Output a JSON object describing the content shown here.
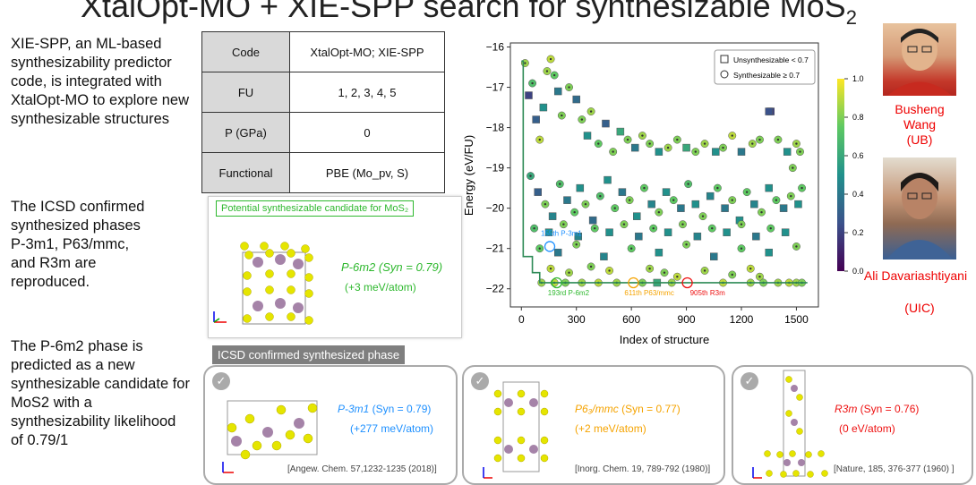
{
  "title": {
    "prefix": "XtalOpt-MO + XIE-SPP search for synthesizable MoS",
    "sub": "2"
  },
  "left": {
    "p1": "XIE-SPP, an ML-based synthesizability predictor code, is integrated with XtalOpt-MO to explore new synthesizable structures",
    "p2a": "The ICSD confirmed synthesized phases",
    "p2phases": "P-3m1, P63/mmc, and R3m",
    "p2b": "are reproduced.",
    "p3a": "The P-6m2 phase is predicted as a new synthesizable candidate for MoS2",
    "p3b": "with a synthesizability likelihood of 0.79/1"
  },
  "table": {
    "rows": [
      {
        "k": "Code",
        "v": "XtalOpt-MO; XIE-SPP"
      },
      {
        "k": "FU",
        "v": "1, 2, 3, 4, 5"
      },
      {
        "k": "P (GPa)",
        "v": "0"
      },
      {
        "k": "Functional",
        "v": "PBE (Mo_pv, S)"
      }
    ]
  },
  "candidate": {
    "label": "Potential synthesizable candidate for MoS₂",
    "name": "P-6m2 (Syn = 0.79)",
    "energy": "(+3 meV/atom)"
  },
  "icsd_tag": "ICSD confirmed synthesized phase",
  "phases": [
    {
      "name": "P-3m1",
      "syn": " (Syn = 0.79)",
      "energy": "(+277 meV/atom)",
      "ref": "[Angew. Chem. 57,1232-1235 (2018)]",
      "color": "#1e90ff"
    },
    {
      "name": "P6₃/mmc",
      "syn": " (Syn = 0.77)",
      "energy": "(+2 meV/atom)",
      "ref": "[Inorg. Chem. 19, 789-792 (1980)]",
      "color": "#f5a300"
    },
    {
      "name": "R3m",
      "syn": " (Syn = 0.76)",
      "energy": "(0 eV/atom)",
      "ref": "[Nature, 185, 376-377 (1960) ]",
      "color": "#ee1111"
    }
  ],
  "people": [
    {
      "name": "Busheng Wang",
      "aff": "(UB)"
    },
    {
      "name": "Ali Davariashtiyani",
      "aff": "(UIC)"
    }
  ],
  "chart_data": {
    "type": "scatter",
    "xlabel": "Index of structure",
    "ylabel": "Energy (eV/FU)",
    "xlim": [
      -60,
      1620
    ],
    "ylim": [
      -22.45,
      -15.9
    ],
    "xticks": [
      0,
      300,
      600,
      900,
      1200,
      1500
    ],
    "yticks": [
      -16,
      -17,
      -18,
      -19,
      -20,
      -21,
      -22
    ],
    "legend": [
      "Unsynthesizable < 0.7",
      "Synthesizable ≥ 0.7"
    ],
    "colorbar": {
      "min": 0.0,
      "max": 1.0,
      "ticks": [
        "1.0",
        "0.8",
        "0.6",
        "0.4",
        "0.2",
        "0.0"
      ]
    },
    "hull_line": [
      [
        0,
        -16.35
      ],
      [
        10,
        -16.35
      ],
      [
        10,
        -21.2
      ],
      [
        60,
        -21.2
      ],
      [
        60,
        -21.6
      ],
      [
        100,
        -21.6
      ],
      [
        100,
        -21.85
      ],
      [
        1560,
        -21.85
      ]
    ],
    "annotations": [
      {
        "text": "155th P-3m1",
        "x": 155,
        "y": -20.95,
        "color": "#1e90ff"
      },
      {
        "text": "193rd P-6m2",
        "x": 193,
        "y": -21.85,
        "color": "#2eb82e"
      },
      {
        "text": "611th P63/mmc",
        "x": 611,
        "y": -21.85,
        "color": "#f5a300"
      },
      {
        "text": "905th R3m",
        "x": 905,
        "y": -21.85,
        "color": "#ee1111"
      }
    ],
    "points": [
      [
        20,
        -16.4,
        0.85,
        1
      ],
      [
        40,
        -17.2,
        0.2,
        0
      ],
      [
        60,
        -16.9,
        0.7,
        1
      ],
      [
        80,
        -17.8,
        0.3,
        0
      ],
      [
        100,
        -18.3,
        0.9,
        1
      ],
      [
        120,
        -17.5,
        0.5,
        0
      ],
      [
        140,
        -16.6,
        0.85,
        1
      ],
      [
        160,
        -16.3,
        0.9,
        1
      ],
      [
        180,
        -16.7,
        0.75,
        1
      ],
      [
        200,
        -17.1,
        0.4,
        0
      ],
      [
        220,
        -17.7,
        0.8,
        1
      ],
      [
        260,
        -17.0,
        0.8,
        1
      ],
      [
        300,
        -17.3,
        0.35,
        0
      ],
      [
        330,
        -17.8,
        0.8,
        1
      ],
      [
        360,
        -18.2,
        0.5,
        0
      ],
      [
        380,
        -17.6,
        0.85,
        1
      ],
      [
        420,
        -18.4,
        0.75,
        1
      ],
      [
        460,
        -17.9,
        0.3,
        0
      ],
      [
        500,
        -18.6,
        0.8,
        1
      ],
      [
        540,
        -18.1,
        0.6,
        0
      ],
      [
        580,
        -18.3,
        0.8,
        1
      ],
      [
        620,
        -18.5,
        0.4,
        0
      ],
      [
        660,
        -18.2,
        0.85,
        1
      ],
      [
        700,
        -18.4,
        0.8,
        1
      ],
      [
        750,
        -18.6,
        0.5,
        0
      ],
      [
        800,
        -18.5,
        0.85,
        1
      ],
      [
        850,
        -18.3,
        0.8,
        1
      ],
      [
        900,
        -18.5,
        0.6,
        0
      ],
      [
        950,
        -18.6,
        0.8,
        1
      ],
      [
        1000,
        -18.4,
        0.85,
        1
      ],
      [
        1060,
        -18.6,
        0.5,
        0
      ],
      [
        1100,
        -18.5,
        0.8,
        1
      ],
      [
        1150,
        -18.2,
        0.9,
        1
      ],
      [
        1200,
        -18.6,
        0.4,
        0
      ],
      [
        1260,
        -18.4,
        0.85,
        1
      ],
      [
        1300,
        -18.3,
        0.8,
        1
      ],
      [
        1360,
        -17.6,
        0.2,
        0
      ],
      [
        1400,
        -18.3,
        0.8,
        1
      ],
      [
        1450,
        -18.6,
        0.5,
        0
      ],
      [
        1500,
        -18.4,
        0.85,
        1
      ],
      [
        1520,
        -18.6,
        0.8,
        1
      ],
      [
        50,
        -19.2,
        0.6,
        1
      ],
      [
        90,
        -19.6,
        0.3,
        0
      ],
      [
        130,
        -19.9,
        0.8,
        1
      ],
      [
        170,
        -20.2,
        0.45,
        0
      ],
      [
        210,
        -19.4,
        0.7,
        1
      ],
      [
        250,
        -19.8,
        0.4,
        0
      ],
      [
        290,
        -20.1,
        0.75,
        1
      ],
      [
        320,
        -19.5,
        0.5,
        0
      ],
      [
        350,
        -19.9,
        0.8,
        1
      ],
      [
        390,
        -20.3,
        0.35,
        0
      ],
      [
        430,
        -19.7,
        0.7,
        1
      ],
      [
        470,
        -19.3,
        0.5,
        0
      ],
      [
        510,
        -20.0,
        0.75,
        1
      ],
      [
        550,
        -19.6,
        0.4,
        0
      ],
      [
        590,
        -19.8,
        0.8,
        1
      ],
      [
        630,
        -20.2,
        0.5,
        0
      ],
      [
        670,
        -19.5,
        0.75,
        1
      ],
      [
        710,
        -19.9,
        0.45,
        0
      ],
      [
        750,
        -20.1,
        0.8,
        1
      ],
      [
        790,
        -19.6,
        0.5,
        0
      ],
      [
        830,
        -19.8,
        0.75,
        1
      ],
      [
        870,
        -20.0,
        0.4,
        0
      ],
      [
        910,
        -19.4,
        0.7,
        1
      ],
      [
        950,
        -19.9,
        0.5,
        0
      ],
      [
        990,
        -20.2,
        0.8,
        1
      ],
      [
        1030,
        -19.7,
        0.45,
        0
      ],
      [
        1070,
        -19.5,
        0.75,
        1
      ],
      [
        1110,
        -20.0,
        0.4,
        0
      ],
      [
        1150,
        -19.8,
        0.8,
        1
      ],
      [
        1190,
        -20.3,
        0.5,
        0
      ],
      [
        1230,
        -19.6,
        0.75,
        1
      ],
      [
        1270,
        -19.9,
        0.45,
        0
      ],
      [
        1310,
        -20.1,
        0.8,
        1
      ],
      [
        1350,
        -19.5,
        0.5,
        0
      ],
      [
        1390,
        -19.8,
        0.75,
        1
      ],
      [
        1430,
        -20.0,
        0.4,
        0
      ],
      [
        1470,
        -19.7,
        0.8,
        1
      ],
      [
        1510,
        -19.9,
        0.5,
        0
      ],
      [
        1530,
        -19.5,
        0.75,
        1
      ],
      [
        70,
        -20.5,
        0.7,
        1
      ],
      [
        150,
        -20.6,
        0.5,
        0
      ],
      [
        230,
        -20.4,
        0.8,
        1
      ],
      [
        310,
        -20.7,
        0.45,
        0
      ],
      [
        400,
        -20.5,
        0.75,
        1
      ],
      [
        480,
        -20.6,
        0.5,
        0
      ],
      [
        560,
        -20.4,
        0.8,
        1
      ],
      [
        640,
        -20.7,
        0.4,
        0
      ],
      [
        720,
        -20.5,
        0.75,
        1
      ],
      [
        800,
        -20.6,
        0.5,
        0
      ],
      [
        880,
        -20.4,
        0.8,
        1
      ],
      [
        960,
        -20.7,
        0.45,
        0
      ],
      [
        1040,
        -20.5,
        0.75,
        1
      ],
      [
        1120,
        -20.6,
        0.5,
        0
      ],
      [
        1200,
        -20.4,
        0.8,
        1
      ],
      [
        1280,
        -20.7,
        0.4,
        0
      ],
      [
        1360,
        -20.5,
        0.75,
        1
      ],
      [
        1440,
        -20.6,
        0.5,
        0
      ],
      [
        100,
        -21.0,
        0.75,
        1
      ],
      [
        200,
        -21.1,
        0.4,
        0
      ],
      [
        300,
        -20.9,
        0.8,
        1
      ],
      [
        450,
        -21.2,
        0.45,
        0
      ],
      [
        600,
        -21.0,
        0.75,
        1
      ],
      [
        750,
        -21.1,
        0.5,
        0
      ],
      [
        900,
        -20.9,
        0.8,
        1
      ],
      [
        1050,
        -21.2,
        0.4,
        0
      ],
      [
        1200,
        -21.0,
        0.75,
        1
      ],
      [
        1350,
        -21.1,
        0.5,
        0
      ],
      [
        1500,
        -20.95,
        0.8,
        1
      ],
      [
        160,
        -21.5,
        0.9,
        1
      ],
      [
        260,
        -21.6,
        0.85,
        1
      ],
      [
        380,
        -21.45,
        0.8,
        1
      ],
      [
        480,
        -21.55,
        0.9,
        1
      ],
      [
        700,
        -21.5,
        0.85,
        1
      ],
      [
        780,
        -21.6,
        0.8,
        1
      ],
      [
        850,
        -21.7,
        0.9,
        1
      ],
      [
        1000,
        -21.55,
        0.85,
        1
      ],
      [
        1150,
        -21.65,
        0.8,
        1
      ],
      [
        1250,
        -21.5,
        0.9,
        1
      ],
      [
        1300,
        -21.7,
        0.85,
        1
      ],
      [
        110,
        -21.85,
        0.85,
        1
      ],
      [
        180,
        -21.85,
        0.9,
        1
      ],
      [
        240,
        -21.85,
        0.8,
        1
      ],
      [
        330,
        -21.85,
        0.85,
        1
      ],
      [
        420,
        -21.85,
        0.9,
        1
      ],
      [
        520,
        -21.85,
        0.85,
        1
      ],
      [
        660,
        -21.85,
        0.8,
        1
      ],
      [
        740,
        -21.85,
        0.6,
        0
      ],
      [
        820,
        -21.85,
        0.85,
        1
      ],
      [
        1100,
        -21.85,
        0.9,
        1
      ],
      [
        1250,
        -21.85,
        0.85,
        1
      ],
      [
        1320,
        -21.85,
        0.8,
        1
      ],
      [
        1400,
        -21.85,
        0.85,
        1
      ],
      [
        1460,
        -21.85,
        0.9,
        1
      ],
      [
        1500,
        -21.85,
        0.85,
        1
      ],
      [
        1530,
        -21.85,
        0.8,
        1
      ],
      [
        1350,
        -17.6,
        0.25,
        0
      ],
      [
        1480,
        -19.0,
        0.8,
        1
      ]
    ]
  }
}
